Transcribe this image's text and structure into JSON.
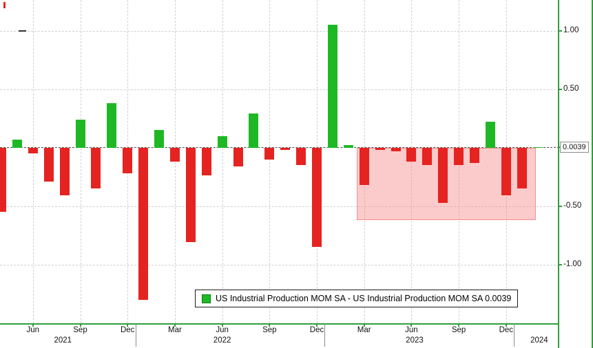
{
  "chart_data": {
    "type": "bar",
    "title": "",
    "series_name": "US Industrial Production MOM SA",
    "last_value": 0.0039,
    "categories": [
      "2021-04",
      "2021-05",
      "2021-06",
      "2021-07",
      "2021-08",
      "2021-09",
      "2021-10",
      "2021-11",
      "2021-12",
      "2022-01",
      "2022-02",
      "2022-03",
      "2022-04",
      "2022-05",
      "2022-06",
      "2022-07",
      "2022-08",
      "2022-09",
      "2022-10",
      "2022-11",
      "2022-12",
      "2023-01",
      "2023-02",
      "2023-03",
      "2023-04",
      "2023-05",
      "2023-06",
      "2023-07",
      "2023-08",
      "2023-09",
      "2023-10",
      "2023-11",
      "2023-12",
      "2024-01",
      "2024-02"
    ],
    "values": [
      -0.55,
      0.07,
      -0.05,
      -0.29,
      -0.41,
      0.24,
      -0.35,
      0.38,
      -0.22,
      -1.3,
      0.15,
      -0.12,
      -0.81,
      -0.24,
      0.1,
      -0.16,
      0.29,
      -0.1,
      -0.02,
      -0.15,
      -0.85,
      1.05,
      0.02,
      -0.32,
      -0.02,
      -0.03,
      -0.12,
      -0.15,
      -0.47,
      -0.15,
      -0.13,
      0.22,
      -0.41,
      -0.35,
      0.0039
    ],
    "ylim": [
      -1.5,
      1.27
    ],
    "y_ticks": [
      {
        "value": 1.0,
        "label": "1.00",
        "boxed": false
      },
      {
        "value": 0.5,
        "label": "0.50",
        "boxed": false
      },
      {
        "value": 0.0039,
        "label": "0.0039",
        "boxed": true
      },
      {
        "value": -0.5,
        "label": "-0.50",
        "boxed": false
      },
      {
        "value": -1.0,
        "label": "-1.00",
        "boxed": false
      }
    ],
    "x_ticks": [
      {
        "index": 2,
        "label": "Jun"
      },
      {
        "index": 5,
        "label": "Sep"
      },
      {
        "index": 8,
        "label": "Dec"
      },
      {
        "index": 11,
        "label": "Mar"
      },
      {
        "index": 14,
        "label": "Jun"
      },
      {
        "index": 17,
        "label": "Sep"
      },
      {
        "index": 20,
        "label": "Dec"
      },
      {
        "index": 23,
        "label": "Mar"
      },
      {
        "index": 26,
        "label": "Jun"
      },
      {
        "index": 29,
        "label": "Sep"
      },
      {
        "index": 32,
        "label": "Dec"
      }
    ],
    "year_labels": [
      {
        "index": 3.9,
        "label": "2021"
      },
      {
        "index": 14.0,
        "label": "2022"
      },
      {
        "index": 26.2,
        "label": "2023"
      },
      {
        "index": 34.1,
        "label": "2024"
      }
    ],
    "year_separators": [
      8.5,
      20.5,
      32.5
    ],
    "highlight_region": {
      "start_index": 22.55,
      "end_index": 33.9,
      "y_top": 0,
      "y_bottom": -0.62
    },
    "grid": true,
    "legend_position": "bottom-center",
    "colors": {
      "positive": "#1fb825",
      "negative": "#e52320",
      "axis": "#2e9e3a",
      "grid": "#cfcfcf",
      "highlight_fill": "rgba(247,140,140,0.45)"
    },
    "legend": {
      "label": "US Industrial Production MOM SA - US Industrial Production MOM SA 0.0039",
      "swatch_color": "#1fb825"
    }
  }
}
